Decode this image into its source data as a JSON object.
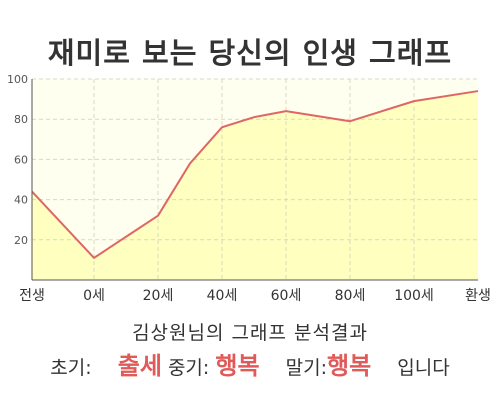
{
  "title": "재미로 보는 당신의 인생 그래프",
  "subtitle": "김상원님의 그래프 분석결과",
  "summary": {
    "early_label": "초기:",
    "early_value": "출세",
    "middle_label": "중기:",
    "middle_value": "행복",
    "late_label": "말기:",
    "late_value": "행복",
    "ending": "입니다"
  },
  "chart_data": {
    "type": "area",
    "title": "재미로 보는 당신의 인생 그래프",
    "x_ticks": [
      "전생",
      "0세",
      "20세",
      "40세",
      "60세",
      "80세",
      "100세",
      "환생"
    ],
    "y_ticks": [
      20,
      40,
      60,
      80,
      100
    ],
    "ylim": [
      0,
      100
    ],
    "points": [
      {
        "x": "전생",
        "y": 44
      },
      {
        "x": "0세",
        "y": 11
      },
      {
        "x": "20세",
        "y": 32
      },
      {
        "x": "30세",
        "y": 58
      },
      {
        "x": "40세",
        "y": 76
      },
      {
        "x": "50세",
        "y": 81
      },
      {
        "x": "60세",
        "y": 84
      },
      {
        "x": "80세",
        "y": 79
      },
      {
        "x": "100세",
        "y": 89
      },
      {
        "x": "환생",
        "y": 94
      }
    ],
    "grid": true,
    "colors": {
      "line": "#e06666",
      "fill": "#ffffc0",
      "plot_background": "#fffff0",
      "grid": "#d9d9c0",
      "accent_text": "#e05a5a"
    }
  }
}
